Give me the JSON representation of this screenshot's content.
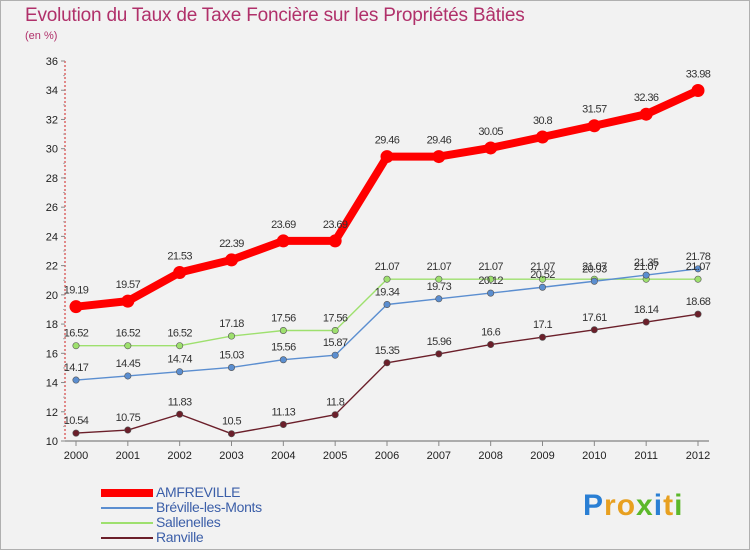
{
  "chart_data": {
    "type": "line",
    "title": "Evolution du Taux de Taxe Foncière sur les Propriétés Bâties",
    "subtitle": "(en %)",
    "xlabel": "",
    "ylabel": "",
    "categories": [
      "2000",
      "2001",
      "2002",
      "2003",
      "2004",
      "2005",
      "2006",
      "2007",
      "2008",
      "2009",
      "2010",
      "2011",
      "2012"
    ],
    "ylim": [
      10,
      36
    ],
    "yticks": [
      10,
      12,
      14,
      16,
      18,
      20,
      22,
      24,
      26,
      28,
      30,
      32,
      34,
      36
    ],
    "grid": false,
    "legend_position": "bottom-left",
    "series": [
      {
        "name": "AMFREVILLE",
        "color": "#ff0000",
        "values": [
          19.19,
          19.57,
          21.53,
          22.39,
          23.69,
          23.69,
          29.46,
          29.46,
          30.05,
          30.8,
          31.57,
          32.36,
          33.98
        ],
        "labels": [
          "19.19",
          "19.57",
          "21.53",
          "22.39",
          "23.69",
          "23.69",
          "29.46",
          "29.46",
          "30.05",
          "30.8",
          "31.57",
          "32.36",
          "33.98"
        ]
      },
      {
        "name": "Bréville-les-Monts",
        "color": "#5b8ed0",
        "values": [
          14.17,
          14.45,
          14.74,
          15.03,
          15.56,
          15.87,
          19.34,
          19.73,
          20.12,
          20.52,
          20.93,
          21.35,
          21.78
        ],
        "labels": [
          "14.17",
          "14.45",
          "14.74",
          "15.03",
          "15.56",
          "15.87",
          "19.34",
          "19.73",
          "20.12",
          "20.52",
          "20.93",
          "21.35",
          "21.78"
        ]
      },
      {
        "name": "Sallenelles",
        "color": "#9ee06e",
        "values": [
          16.52,
          16.52,
          16.52,
          17.18,
          17.56,
          17.56,
          21.07,
          21.07,
          21.07,
          21.07,
          21.07,
          21.07,
          21.07
        ],
        "labels": [
          "16.52",
          "16.52",
          "16.52",
          "17.18",
          "17.56",
          "17.56",
          "21.07",
          "21.07",
          "21.07",
          "21.07",
          "21.07",
          "21.07",
          "21.07"
        ]
      },
      {
        "name": "Ranville",
        "color": "#6b1f2a",
        "values": [
          10.54,
          10.75,
          11.83,
          10.5,
          11.13,
          11.8,
          15.35,
          15.96,
          16.6,
          17.1,
          17.61,
          18.14,
          18.68
        ],
        "labels": [
          "10.54",
          "10.75",
          "11.83",
          "10.5",
          "11.13",
          "11.8",
          "15.35",
          "15.96",
          "16.6",
          "17.1",
          "17.61",
          "18.14",
          "18.68"
        ]
      }
    ]
  },
  "brand": {
    "letters": [
      "P",
      "r",
      "o",
      "x",
      "i",
      "t",
      "i"
    ],
    "colors": [
      "#2a7fd4",
      "#e8a020",
      "#e8a020",
      "#5cb82a",
      "#2a7fd4",
      "#e8a020",
      "#5cb82a"
    ]
  }
}
